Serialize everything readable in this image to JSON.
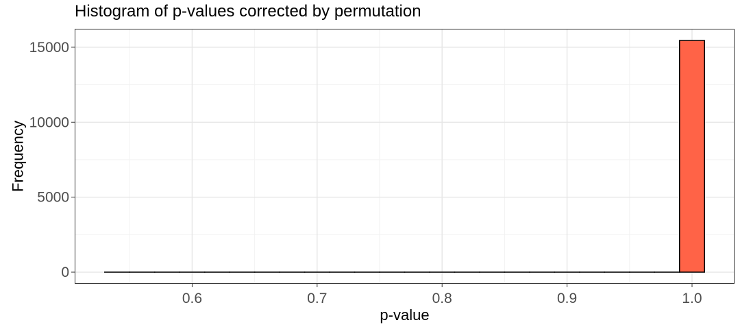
{
  "chart_data": {
    "type": "bar",
    "title": "Histogram of p-values corrected by permutation",
    "xlabel": "p-value",
    "ylabel": "Frequency",
    "xlim": [
      0.53,
      1.01
    ],
    "ylim": [
      0,
      15500
    ],
    "x_ticks": [
      0.6,
      0.7,
      0.8,
      0.9,
      1.0
    ],
    "x_tick_labels": [
      "0.6",
      "0.7",
      "0.8",
      "0.9",
      "1.0"
    ],
    "y_ticks": [
      0,
      5000,
      10000,
      15000
    ],
    "y_tick_labels": [
      "0",
      "5000",
      "10000",
      "15000"
    ],
    "bin_edges": [
      0.53,
      0.55,
      0.57,
      0.59,
      0.61,
      0.63,
      0.65,
      0.67,
      0.69,
      0.71,
      0.73,
      0.75,
      0.77,
      0.79,
      0.81,
      0.83,
      0.85,
      0.87,
      0.89,
      0.91,
      0.93,
      0.95,
      0.97,
      0.99,
      1.01
    ],
    "values": [
      0,
      0,
      0,
      0,
      0,
      0,
      0,
      0,
      0,
      0,
      0,
      0,
      0,
      0,
      0,
      0,
      0,
      0,
      0,
      0,
      0,
      0,
      0,
      15450
    ],
    "bar_fill": "#FF6347",
    "bar_outline": "#000000",
    "grid": true,
    "panel_border": true,
    "legend": "none"
  }
}
